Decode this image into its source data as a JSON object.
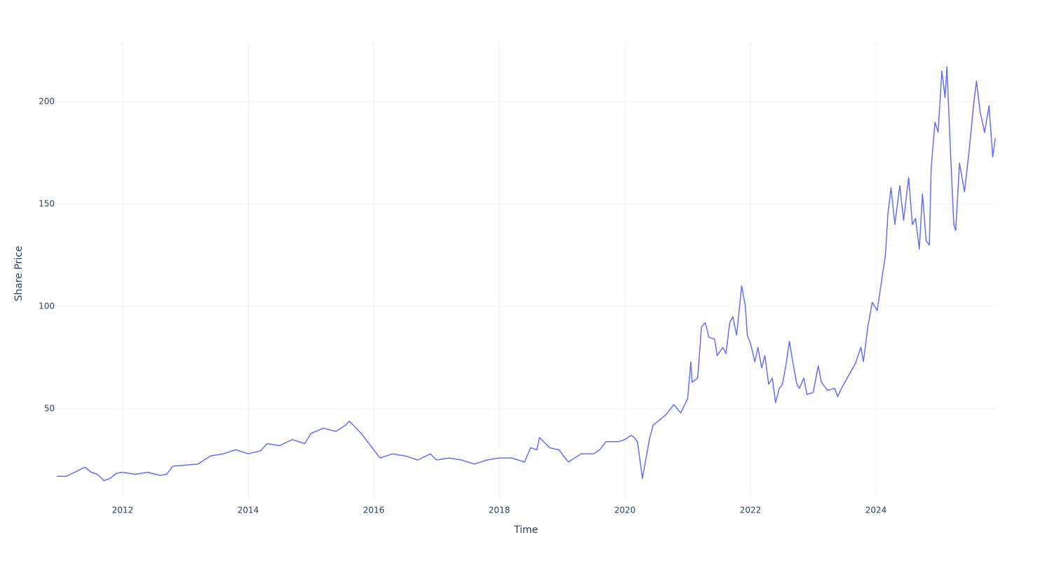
{
  "chart_data": {
    "type": "line",
    "xlabel": "Time",
    "ylabel": "Share Price",
    "grid": true,
    "xlim": [
      2010.94,
      2025.91
    ],
    "xticks": [
      2012,
      2014,
      2016,
      2018,
      2020,
      2022,
      2024
    ],
    "ylim": [
      6.5,
      229.1
    ],
    "yticks": [
      50,
      100,
      150,
      200
    ],
    "series": [
      {
        "color": "#636efa",
        "x": [
          2010.95,
          2011.1,
          2011.2,
          2011.3,
          2011.4,
          2011.5,
          2011.6,
          2011.7,
          2011.8,
          2011.9,
          2012.0,
          2012.2,
          2012.4,
          2012.6,
          2012.7,
          2012.8,
          2013.0,
          2013.2,
          2013.4,
          2013.6,
          2013.8,
          2014.0,
          2014.2,
          2014.3,
          2014.5,
          2014.7,
          2014.9,
          2015.0,
          2015.2,
          2015.4,
          2015.55,
          2015.61,
          2015.8,
          2016.0,
          2016.1,
          2016.3,
          2016.5,
          2016.7,
          2016.9,
          2017.0,
          2017.2,
          2017.4,
          2017.6,
          2017.8,
          2018.0,
          2018.2,
          2018.4,
          2018.5,
          2018.6,
          2018.64,
          2018.8,
          2018.95,
          2019.1,
          2019.3,
          2019.5,
          2019.6,
          2019.7,
          2019.9,
          2020.0,
          2020.1,
          2020.15,
          2020.2,
          2020.28,
          2020.39,
          2020.45,
          2020.65,
          2020.78,
          2020.89,
          2021.0,
          2021.05,
          2021.07,
          2021.16,
          2021.22,
          2021.28,
          2021.34,
          2021.43,
          2021.47,
          2021.56,
          2021.61,
          2021.67,
          2021.72,
          2021.78,
          2021.86,
          2021.92,
          2021.95,
          2022.0,
          2022.07,
          2022.12,
          2022.18,
          2022.23,
          2022.29,
          2022.35,
          2022.4,
          2022.46,
          2022.51,
          2022.57,
          2022.62,
          2022.68,
          2022.74,
          2022.78,
          2022.85,
          2022.9,
          2023.0,
          2023.08,
          2023.13,
          2023.23,
          2023.34,
          2023.39,
          2023.45,
          2023.56,
          2023.67,
          2023.76,
          2023.8,
          2023.87,
          2023.94,
          2024.02,
          2024.1,
          2024.15,
          2024.19,
          2024.24,
          2024.3,
          2024.38,
          2024.44,
          2024.52,
          2024.58,
          2024.63,
          2024.69,
          2024.74,
          2024.8,
          2024.85,
          2024.88,
          2024.94,
          2024.99,
          2025.05,
          2025.1,
          2025.13,
          2025.18,
          2025.24,
          2025.27,
          2025.33,
          2025.41,
          2025.48,
          2025.56,
          2025.6,
          2025.66,
          2025.73,
          2025.8,
          2025.86,
          2025.9
        ],
        "values": [
          17,
          17,
          18.5,
          20,
          21.5,
          19,
          18,
          15,
          16,
          18.5,
          19,
          18,
          19,
          17.5,
          18,
          22,
          22.5,
          23,
          27,
          28,
          30,
          28,
          29.5,
          33,
          32,
          35,
          33,
          38,
          40.5,
          39,
          42,
          44,
          38,
          30,
          26,
          28,
          27,
          25,
          28,
          25,
          26,
          25,
          23,
          25,
          26,
          26,
          24,
          31,
          30,
          36,
          31,
          30,
          24,
          28,
          28,
          30,
          34,
          34,
          35,
          37,
          36,
          34,
          16,
          35,
          42,
          47,
          52,
          48,
          55,
          73,
          63,
          65,
          90,
          92,
          85,
          84,
          76,
          80,
          77,
          92,
          95,
          86,
          110,
          100,
          86,
          82,
          73,
          80,
          70,
          76,
          62,
          65,
          53,
          60,
          62,
          72,
          83,
          72,
          62,
          60,
          65,
          57,
          58,
          71,
          63,
          59,
          60,
          56,
          60,
          66,
          72,
          80,
          73,
          90,
          102,
          98,
          115,
          125,
          145,
          158,
          140,
          159,
          142,
          163,
          140,
          143,
          128,
          155,
          132,
          130,
          168,
          190,
          185,
          215,
          202,
          217,
          180,
          140,
          137,
          170,
          156,
          175,
          200,
          210,
          195,
          185,
          198,
          173,
          182
        ]
      }
    ]
  }
}
